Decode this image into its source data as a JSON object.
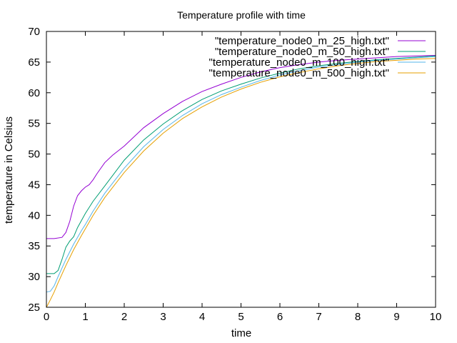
{
  "chart_data": {
    "type": "line",
    "title": "Temperature profile with time",
    "xlabel": "time",
    "ylabel": "temperature in Celsius",
    "xlim": [
      0,
      10
    ],
    "ylim": [
      25,
      70
    ],
    "xticks": [
      0,
      1,
      2,
      3,
      4,
      5,
      6,
      7,
      8,
      9,
      10
    ],
    "yticks": [
      25,
      30,
      35,
      40,
      45,
      50,
      55,
      60,
      65,
      70
    ],
    "grid": false,
    "legend_position": "top-right",
    "series": [
      {
        "name": "\"temperature_node0_m_25_high.txt\"",
        "color": "#9400d3",
        "x": [
          0,
          0.2,
          0.4,
          0.5,
          0.6,
          0.7,
          0.8,
          0.9,
          1.0,
          1.1,
          1.2,
          1.3,
          1.5,
          1.7,
          2.0,
          2.5,
          3.0,
          3.5,
          4.0,
          4.5,
          5.0,
          5.5,
          6.0,
          6.5,
          7.0,
          7.5,
          8.0,
          8.5,
          9.0,
          9.5,
          10.0
        ],
        "y": [
          36.2,
          36.2,
          36.4,
          37.2,
          39.0,
          41.5,
          43.2,
          44.0,
          44.6,
          45.0,
          45.8,
          46.8,
          48.6,
          49.8,
          51.3,
          54.3,
          56.6,
          58.6,
          60.2,
          61.4,
          62.5,
          63.4,
          64.1,
          64.6,
          65.0,
          65.3,
          65.5,
          65.7,
          65.9,
          66.0,
          66.1
        ]
      },
      {
        "name": "\"temperature_node0_m_50_high.txt\"",
        "color": "#009e73",
        "x": [
          0,
          0.2,
          0.3,
          0.4,
          0.5,
          0.6,
          0.7,
          0.8,
          1.0,
          1.2,
          1.5,
          2.0,
          2.5,
          3.0,
          3.5,
          4.0,
          4.5,
          5.0,
          5.5,
          6.0,
          6.5,
          7.0,
          7.5,
          8.0,
          8.5,
          9.0,
          9.5,
          10.0
        ],
        "y": [
          30.5,
          30.5,
          31.0,
          32.8,
          34.8,
          35.8,
          36.5,
          38.0,
          40.3,
          42.3,
          44.8,
          49.0,
          52.3,
          54.9,
          57.1,
          58.9,
          60.3,
          61.4,
          62.4,
          63.2,
          63.9,
          64.4,
          64.8,
          65.1,
          65.4,
          65.6,
          65.8,
          66.0
        ]
      },
      {
        "name": "\"temperature_node0_m_100_high.txt\"",
        "color": "#56b4e9",
        "x": [
          0,
          0.1,
          0.2,
          0.3,
          0.5,
          0.7,
          0.9,
          1.0,
          1.2,
          1.5,
          2.0,
          2.5,
          3.0,
          3.5,
          4.0,
          4.5,
          5.0,
          5.5,
          6.0,
          6.5,
          7.0,
          7.5,
          8.0,
          8.5,
          9.0,
          9.5,
          10.0
        ],
        "y": [
          27.5,
          27.6,
          28.5,
          30.0,
          32.8,
          35.3,
          37.5,
          38.5,
          40.7,
          43.6,
          47.7,
          51.2,
          54.0,
          56.3,
          58.2,
          59.7,
          60.9,
          62.0,
          62.9,
          63.6,
          64.2,
          64.6,
          65.0,
          65.3,
          65.5,
          65.7,
          65.9
        ]
      },
      {
        "name": "\"temperature_node0_m_500_high.txt\"",
        "color": "#e69f00",
        "x": [
          0,
          0.1,
          0.2,
          0.3,
          0.5,
          0.7,
          0.9,
          1.0,
          1.2,
          1.5,
          2.0,
          2.5,
          3.0,
          3.5,
          4.0,
          4.5,
          5.0,
          5.5,
          6.0,
          6.5,
          7.0,
          7.5,
          8.0,
          8.5,
          9.0,
          9.5,
          10.0
        ],
        "y": [
          25.0,
          26.2,
          27.5,
          29.0,
          31.8,
          34.4,
          36.7,
          37.8,
          40.0,
          42.9,
          47.0,
          50.5,
          53.4,
          55.8,
          57.7,
          59.3,
          60.6,
          61.7,
          62.6,
          63.3,
          63.9,
          64.4,
          64.8,
          65.1,
          65.3,
          65.5,
          65.6
        ]
      }
    ]
  }
}
